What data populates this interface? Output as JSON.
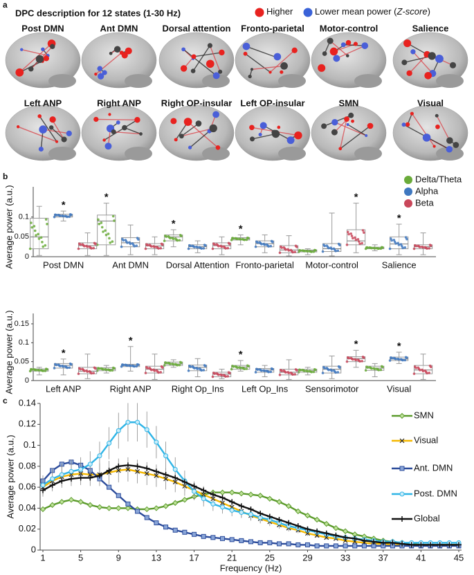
{
  "brain_panel": {
    "label": "a",
    "title": "DPC description for 12 states (1-30 Hz)",
    "legend": [
      {
        "text": "Higher",
        "color": "#e8221f"
      },
      {
        "text": "Lower mean power (",
        "italic": "Z-score",
        "close": ")",
        "color": "#3a62d8"
      }
    ],
    "states": [
      "Post DMN",
      "Ant DMN",
      "Dorsal attention",
      "Fronto-parietal",
      "Motor-control",
      "Salience",
      "Left ANP",
      "Right ANP",
      "Right OP-insular",
      "Left OP-insular",
      "SMN",
      "Visual"
    ]
  },
  "chart_data": [
    {
      "type": "box",
      "panel_label": "b",
      "y_label": "Average power (a.u.)",
      "legend_position": "right",
      "categories": [
        "Post DMN",
        "Ant DMN",
        "Dorsal Attention",
        "Fronto-parietal",
        "Motor-control",
        "Salience"
      ],
      "ylim": [
        0,
        0.15
      ],
      "yticks": [
        0,
        0.05,
        0.1
      ],
      "series": [
        {
          "name": "Delta/Theta",
          "color": "#6aab3a",
          "boxes": [
            {
              "min": 0.003,
              "q1": 0.02,
              "median": 0.05,
              "q3": 0.097,
              "max": 0.127
            },
            {
              "min": 0.003,
              "q1": 0.03,
              "median": 0.09,
              "q3": 0.105,
              "max": 0.135,
              "label": "*"
            },
            {
              "min": 0.025,
              "q1": 0.04,
              "median": 0.05,
              "q3": 0.055,
              "max": 0.068,
              "label": "*"
            },
            {
              "min": 0.03,
              "q1": 0.042,
              "median": 0.045,
              "q3": 0.048,
              "max": 0.055,
              "label": "*"
            },
            {
              "min": 0.005,
              "q1": 0.012,
              "median": 0.015,
              "q3": 0.017,
              "max": 0.02
            },
            {
              "min": 0.015,
              "q1": 0.02,
              "median": 0.022,
              "q3": 0.024,
              "max": 0.03
            }
          ]
        },
        {
          "name": "Alpha",
          "color": "#3f78c0",
          "boxes": [
            {
              "min": 0.09,
              "q1": 0.1,
              "median": 0.103,
              "q3": 0.107,
              "max": 0.115,
              "label": "*"
            },
            {
              "min": 0.005,
              "q1": 0.025,
              "median": 0.035,
              "q3": 0.048,
              "max": 0.08
            },
            {
              "min": 0.01,
              "q1": 0.02,
              "median": 0.025,
              "q3": 0.03,
              "max": 0.04
            },
            {
              "min": 0.01,
              "q1": 0.025,
              "median": 0.033,
              "q3": 0.04,
              "max": 0.055
            },
            {
              "min": 0.002,
              "q1": 0.013,
              "median": 0.02,
              "q3": 0.033,
              "max": 0.11
            },
            {
              "min": 0.005,
              "q1": 0.02,
              "median": 0.032,
              "q3": 0.05,
              "max": 0.082,
              "label": "*"
            }
          ]
        },
        {
          "name": "Beta",
          "color": "#c9475a",
          "boxes": [
            {
              "min": 0.003,
              "q1": 0.02,
              "median": 0.028,
              "q3": 0.035,
              "max": 0.06
            },
            {
              "min": 0.005,
              "q1": 0.02,
              "median": 0.027,
              "q3": 0.033,
              "max": 0.05
            },
            {
              "min": 0.005,
              "q1": 0.02,
              "median": 0.028,
              "q3": 0.035,
              "max": 0.05
            },
            {
              "min": 0.002,
              "q1": 0.01,
              "median": 0.017,
              "q3": 0.028,
              "max": 0.053
            },
            {
              "min": 0.01,
              "q1": 0.03,
              "median": 0.04,
              "q3": 0.068,
              "max": 0.135,
              "label": "*"
            },
            {
              "min": 0.005,
              "q1": 0.02,
              "median": 0.025,
              "q3": 0.03,
              "max": 0.06
            }
          ]
        }
      ]
    },
    {
      "type": "box",
      "y_label": "Average power (a.u.)",
      "categories": [
        "Left ANP",
        "Right ANP",
        "Right Op_Ins",
        "Left Op_Ins",
        "Sensorimotor",
        "Visual"
      ],
      "ylim": [
        0,
        0.15
      ],
      "yticks": [
        0,
        0.05,
        0.1,
        0.15
      ],
      "series": [
        {
          "color": "#6aab3a",
          "boxes": [
            {
              "min": 0.015,
              "q1": 0.025,
              "median": 0.028,
              "q3": 0.031,
              "max": 0.035
            },
            {
              "min": 0.02,
              "q1": 0.026,
              "median": 0.03,
              "q3": 0.034,
              "max": 0.04
            },
            {
              "min": 0.035,
              "q1": 0.04,
              "median": 0.044,
              "q3": 0.049,
              "max": 0.055
            },
            {
              "min": 0.025,
              "q1": 0.03,
              "median": 0.036,
              "q3": 0.04,
              "max": 0.053,
              "label": "*"
            },
            {
              "min": 0.015,
              "q1": 0.022,
              "median": 0.026,
              "q3": 0.03,
              "max": 0.035
            },
            {
              "min": 0.01,
              "q1": 0.027,
              "median": 0.033,
              "q3": 0.038,
              "max": 0.045
            }
          ]
        },
        {
          "color": "#3f78c0",
          "boxes": [
            {
              "min": 0.015,
              "q1": 0.033,
              "median": 0.04,
              "q3": 0.045,
              "max": 0.057,
              "label": "*"
            },
            {
              "min": 0.025,
              "q1": 0.037,
              "median": 0.04,
              "q3": 0.043,
              "max": 0.09,
              "label": "*"
            },
            {
              "min": 0.01,
              "q1": 0.026,
              "median": 0.035,
              "q3": 0.041,
              "max": 0.058
            },
            {
              "min": 0.01,
              "q1": 0.022,
              "median": 0.028,
              "q3": 0.032,
              "max": 0.04
            },
            {
              "min": 0.005,
              "q1": 0.02,
              "median": 0.03,
              "q3": 0.038,
              "max": 0.065
            },
            {
              "min": 0.045,
              "q1": 0.053,
              "median": 0.057,
              "q3": 0.062,
              "max": 0.075,
              "label": "*"
            }
          ]
        },
        {
          "color": "#c9475a",
          "boxes": [
            {
              "min": 0.005,
              "q1": 0.018,
              "median": 0.025,
              "q3": 0.035,
              "max": 0.07
            },
            {
              "min": 0.003,
              "q1": 0.02,
              "median": 0.03,
              "q3": 0.038,
              "max": 0.07
            },
            {
              "min": 0.005,
              "q1": 0.01,
              "median": 0.017,
              "q3": 0.022,
              "max": 0.03
            },
            {
              "min": 0.003,
              "q1": 0.015,
              "median": 0.022,
              "q3": 0.03,
              "max": 0.055
            },
            {
              "min": 0.035,
              "q1": 0.05,
              "median": 0.058,
              "q3": 0.063,
              "max": 0.08,
              "label": "*"
            },
            {
              "min": 0.003,
              "q1": 0.018,
              "median": 0.028,
              "q3": 0.04,
              "max": 0.07
            }
          ]
        }
      ]
    },
    {
      "type": "line",
      "panel_label": "c",
      "y_label": "Average power (a.u.)",
      "x_label": "Frequency (Hz)",
      "legend_position": "right",
      "xlim": [
        1,
        45
      ],
      "xticks": [
        1,
        5,
        9,
        13,
        17,
        21,
        25,
        29,
        33,
        37,
        41,
        45
      ],
      "ylim": [
        0,
        0.14
      ],
      "yticks": [
        0,
        0.02,
        0.04,
        0.06,
        0.08,
        0.1,
        0.12,
        0.14
      ],
      "x": [
        1,
        2,
        3,
        4,
        5,
        6,
        7,
        8,
        9,
        10,
        11,
        12,
        13,
        14,
        15,
        16,
        17,
        18,
        19,
        20,
        21,
        22,
        23,
        24,
        25,
        26,
        27,
        28,
        29,
        30,
        31,
        32,
        33,
        34,
        35,
        36,
        37,
        38,
        39,
        40,
        41,
        42,
        43,
        44,
        45
      ],
      "series": [
        {
          "name": "SMN",
          "color": "#5a9a2a",
          "marker": "diamond",
          "values": [
            0.039,
            0.043,
            0.046,
            0.048,
            0.046,
            0.043,
            0.041,
            0.04,
            0.04,
            0.04,
            0.039,
            0.039,
            0.04,
            0.042,
            0.045,
            0.048,
            0.051,
            0.053,
            0.055,
            0.055,
            0.055,
            0.054,
            0.053,
            0.052,
            0.049,
            0.046,
            0.042,
            0.037,
            0.033,
            0.029,
            0.025,
            0.021,
            0.018,
            0.015,
            0.013,
            0.011,
            0.009,
            0.008,
            0.007,
            0.006,
            0.005,
            0.005,
            0.005,
            0.005,
            0.005
          ]
        },
        {
          "name": "Visual",
          "color": "#f5b800",
          "marker": "x",
          "values": [
            0.06,
            0.066,
            0.07,
            0.072,
            0.073,
            0.072,
            0.072,
            0.074,
            0.076,
            0.077,
            0.075,
            0.073,
            0.071,
            0.068,
            0.065,
            0.061,
            0.057,
            0.053,
            0.049,
            0.045,
            0.041,
            0.037,
            0.033,
            0.03,
            0.027,
            0.024,
            0.021,
            0.019,
            0.016,
            0.014,
            0.012,
            0.011,
            0.009,
            0.008,
            0.007,
            0.006,
            0.006,
            0.005,
            0.005,
            0.005,
            0.005,
            0.005,
            0.005,
            0.005,
            0.005
          ]
        },
        {
          "name": "Ant. DMN",
          "color": "#2a4a9a",
          "marker": "square",
          "values": [
            0.066,
            0.076,
            0.082,
            0.084,
            0.081,
            0.076,
            0.068,
            0.06,
            0.052,
            0.044,
            0.037,
            0.031,
            0.026,
            0.022,
            0.019,
            0.017,
            0.015,
            0.013,
            0.012,
            0.011,
            0.01,
            0.009,
            0.008,
            0.007,
            0.007,
            0.006,
            0.006,
            0.005,
            0.005,
            0.004,
            0.004,
            0.004,
            0.004,
            0.004,
            0.004,
            0.004,
            0.004,
            0.004,
            0.004,
            0.004,
            0.004,
            0.004,
            0.004,
            0.004,
            0.004
          ]
        },
        {
          "name": "Post. DMN",
          "color": "#2eb4e6",
          "marker": "circle",
          "values": [
            0.062,
            0.068,
            0.072,
            0.075,
            0.077,
            0.082,
            0.09,
            0.102,
            0.114,
            0.122,
            0.122,
            0.115,
            0.103,
            0.09,
            0.077,
            0.066,
            0.056,
            0.049,
            0.044,
            0.041,
            0.038,
            0.036,
            0.034,
            0.031,
            0.029,
            0.026,
            0.023,
            0.021,
            0.019,
            0.017,
            0.015,
            0.013,
            0.012,
            0.011,
            0.01,
            0.009,
            0.008,
            0.008,
            0.007,
            0.007,
            0.007,
            0.007,
            0.007,
            0.007,
            0.007
          ]
        },
        {
          "name": "Global",
          "color": "#111111",
          "marker": "dash",
          "values": [
            0.057,
            0.062,
            0.066,
            0.068,
            0.069,
            0.069,
            0.071,
            0.076,
            0.08,
            0.081,
            0.08,
            0.078,
            0.075,
            0.072,
            0.069,
            0.065,
            0.061,
            0.057,
            0.053,
            0.05,
            0.046,
            0.042,
            0.039,
            0.035,
            0.032,
            0.029,
            0.026,
            0.023,
            0.02,
            0.018,
            0.016,
            0.014,
            0.012,
            0.011,
            0.009,
            0.008,
            0.007,
            0.007,
            0.006,
            0.005,
            0.005,
            0.005,
            0.005,
            0.005,
            0.005
          ]
        }
      ]
    }
  ]
}
